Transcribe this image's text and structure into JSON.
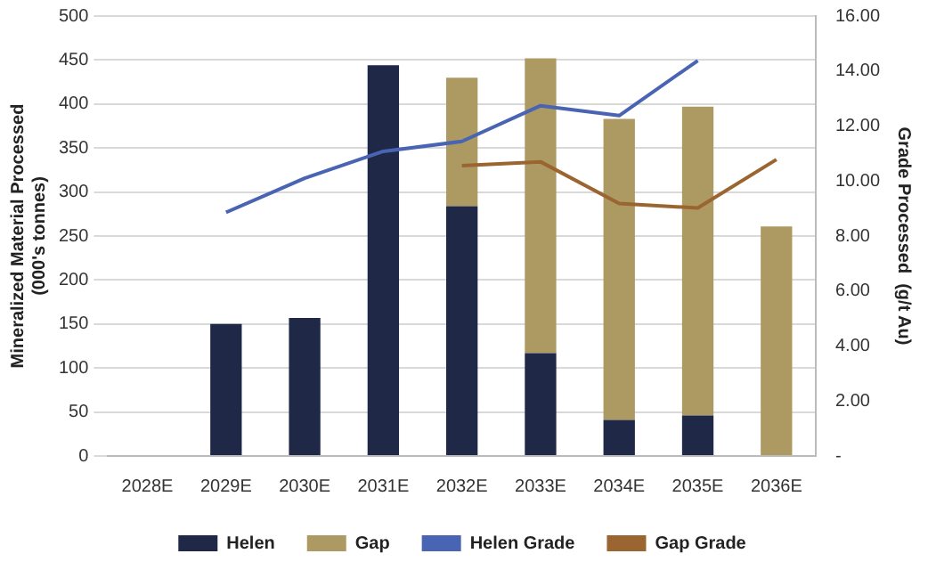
{
  "chart_data": {
    "type": "bar",
    "stacked": true,
    "categories": [
      "2028E",
      "2029E",
      "2030E",
      "2031E",
      "2032E",
      "2033E",
      "2034E",
      "2035E",
      "2036E"
    ],
    "ylabel": "Mineralized Material Processed\n(000's tonnes)",
    "y2label": "Grade Processed  (g/t Au)",
    "ylim": [
      0,
      500
    ],
    "yticks": [
      0,
      50,
      100,
      150,
      200,
      250,
      300,
      350,
      400,
      450,
      500
    ],
    "y2lim": [
      0,
      16
    ],
    "y2ticks": [
      {
        "value": 0,
        "label": "-"
      },
      {
        "value": 2,
        "label": "2.00"
      },
      {
        "value": 4,
        "label": "4.00"
      },
      {
        "value": 6,
        "label": "6.00"
      },
      {
        "value": 8,
        "label": "8.00"
      },
      {
        "value": 10,
        "label": "10.00"
      },
      {
        "value": 12,
        "label": "12.00"
      },
      {
        "value": 14,
        "label": "14.00"
      },
      {
        "value": 16,
        "label": "16.00"
      }
    ],
    "grid": "y",
    "legend": "bottom",
    "series": [
      {
        "name": "Helen",
        "color": "#1f2847",
        "values": [
          null,
          150,
          157,
          444,
          284,
          117,
          41,
          46,
          null
        ]
      },
      {
        "name": "Gap",
        "color": "#ad9a63",
        "values": [
          null,
          null,
          null,
          null,
          146,
          335,
          342,
          351,
          261
        ]
      },
      {
        "name": "Helen Grade",
        "type": "line",
        "axis": "y2",
        "color": "#4a64b4",
        "values": [
          null,
          8.86,
          10.1,
          11.08,
          11.44,
          12.74,
          12.38,
          14.38,
          null
        ]
      },
      {
        "name": "Gap Grade",
        "type": "line",
        "axis": "y2",
        "color": "#9a6530",
        "values": [
          null,
          null,
          null,
          null,
          10.56,
          10.7,
          9.18,
          9.02,
          10.78
        ]
      }
    ]
  }
}
